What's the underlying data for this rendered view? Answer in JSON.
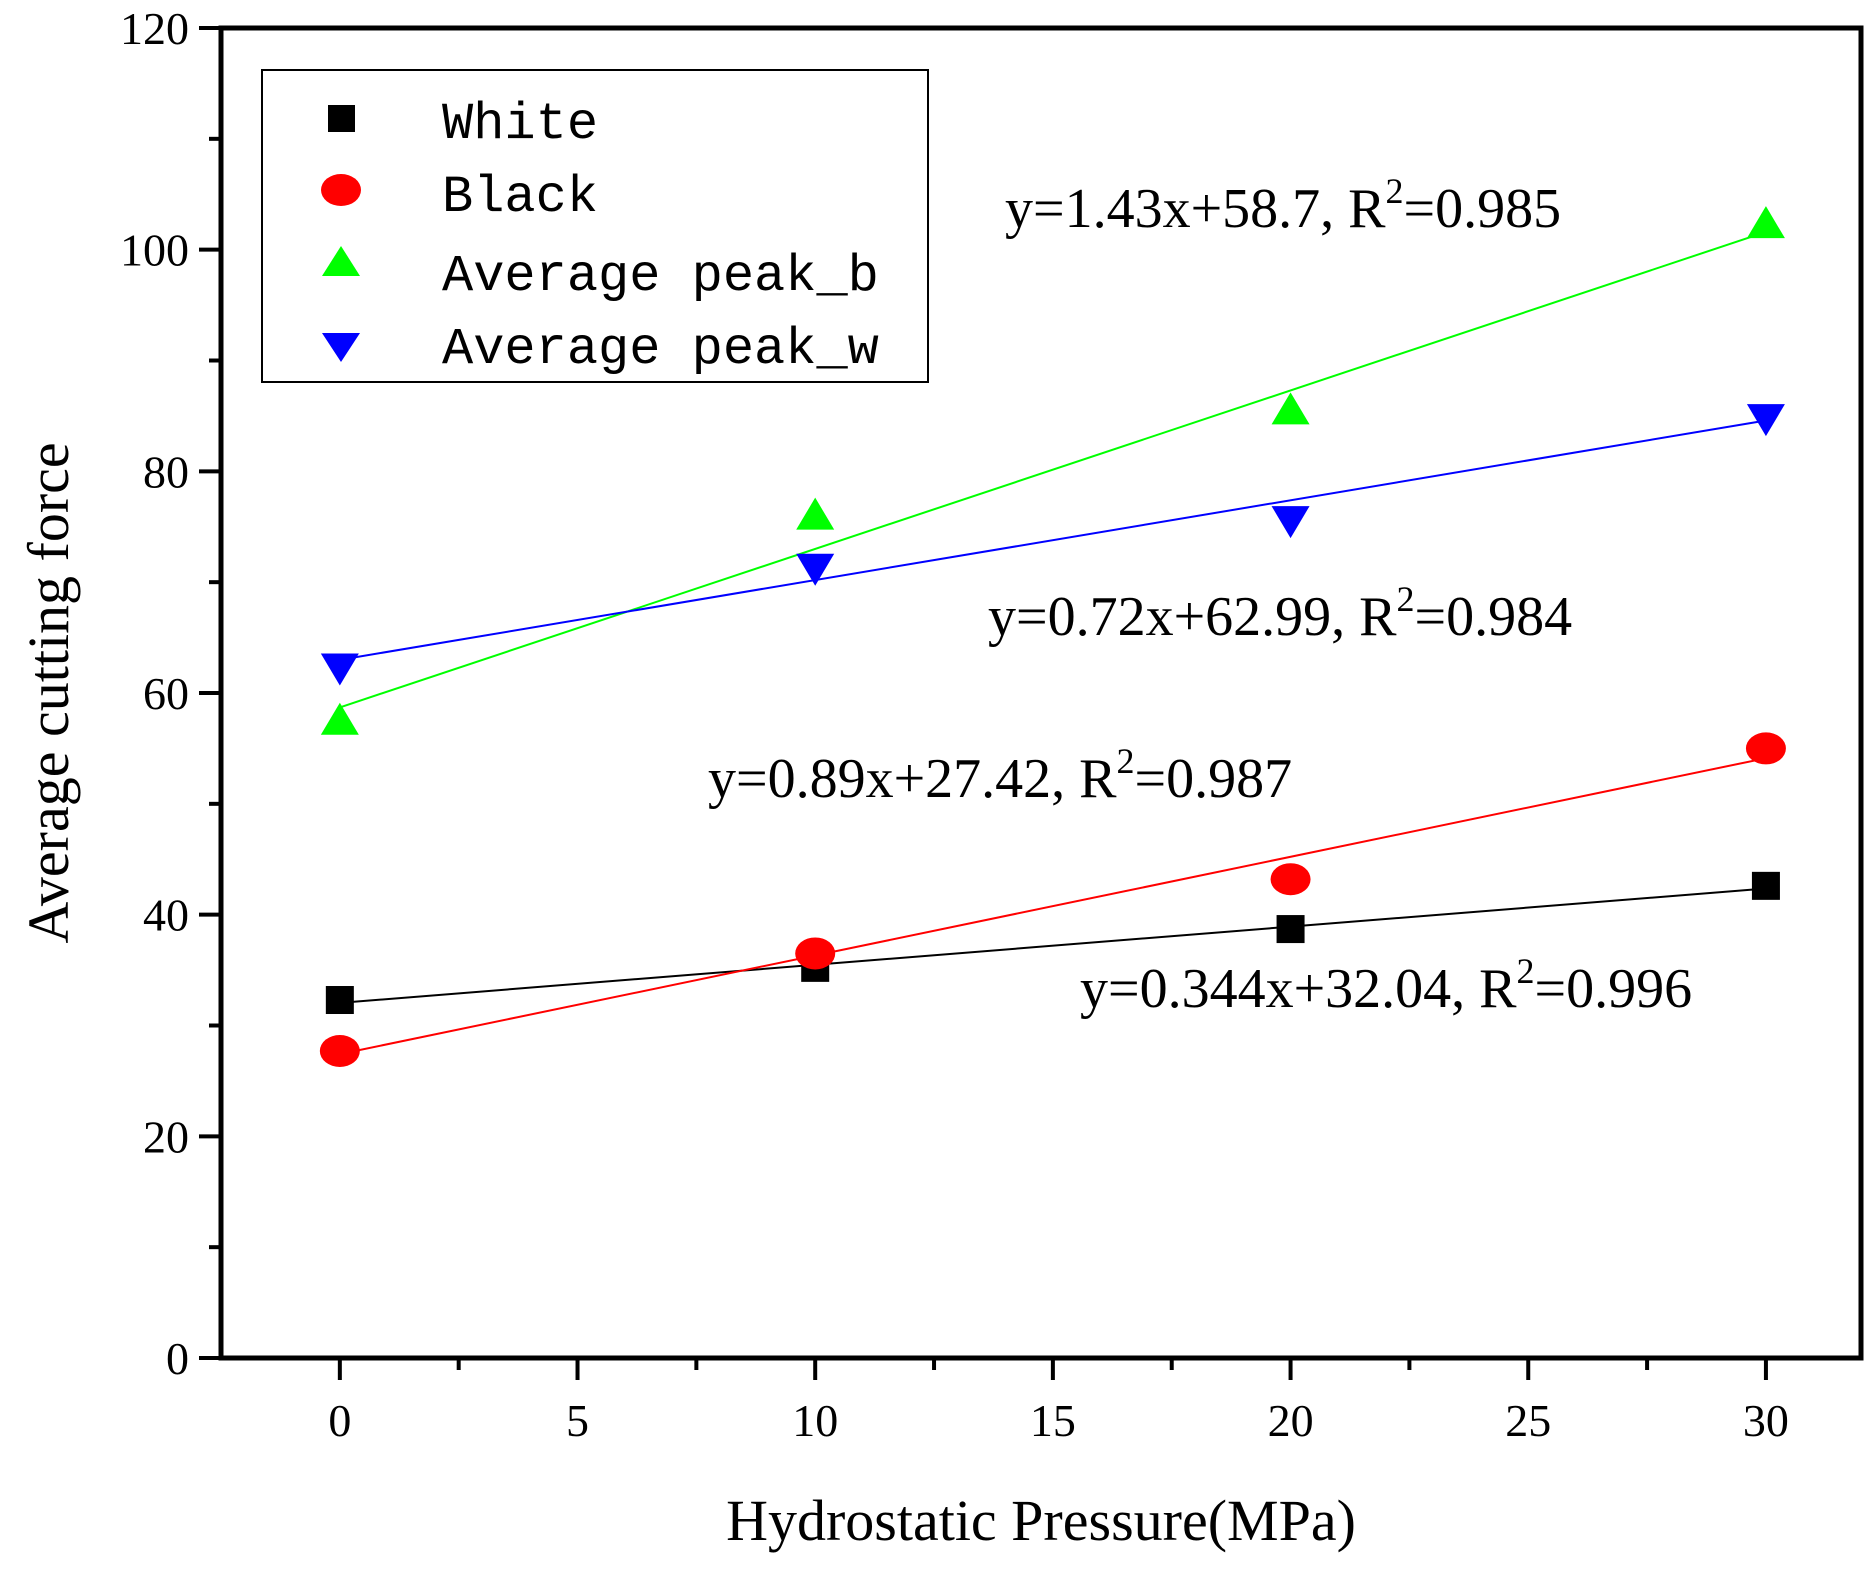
{
  "chart_data": {
    "type": "scatter",
    "xlabel": "Hydrostatic Pressure(MPa)",
    "ylabel": "Average cutting force",
    "xlim": [
      -2.5,
      32
    ],
    "ylim": [
      0,
      120
    ],
    "xticks": [
      0,
      5,
      10,
      15,
      20,
      25,
      30
    ],
    "yticks": [
      0,
      20,
      40,
      60,
      80,
      100,
      120
    ],
    "legend_position": "top-left",
    "grid": false,
    "series": [
      {
        "name": "White",
        "marker": "square",
        "color": "#000000",
        "x": [
          0,
          10,
          20,
          30
        ],
        "y": [
          32.3,
          35.2,
          38.7,
          42.6
        ],
        "fit": {
          "slope": 0.344,
          "intercept": 32.04,
          "label": "y=0.344x+32.04, R",
          "r2": "=0.996"
        }
      },
      {
        "name": "Black",
        "marker": "circle",
        "color": "#ff0000",
        "x": [
          0,
          10,
          20,
          30
        ],
        "y": [
          27.7,
          36.5,
          43.2,
          55.0
        ],
        "fit": {
          "slope": 0.89,
          "intercept": 27.42,
          "label": "y=0.89x+27.42, R",
          "r2": "=0.987"
        }
      },
      {
        "name": "Average peak_b",
        "marker": "triangle-up",
        "color": "#00ff00",
        "x": [
          0,
          10,
          20,
          30
        ],
        "y": [
          57.5,
          76.0,
          85.5,
          102.3
        ],
        "fit": {
          "slope": 1.43,
          "intercept": 58.7,
          "label": "y=1.43x+58.7, R",
          "r2": "=0.985"
        }
      },
      {
        "name": "Average peak_w",
        "marker": "triangle-down",
        "color": "#0000ff",
        "x": [
          0,
          10,
          20,
          30
        ],
        "y": [
          62.3,
          71.3,
          75.6,
          84.8
        ],
        "fit": {
          "slope": 0.72,
          "intercept": 62.99,
          "label": "y=0.72x+62.99, R",
          "r2": "=0.984"
        }
      }
    ]
  }
}
